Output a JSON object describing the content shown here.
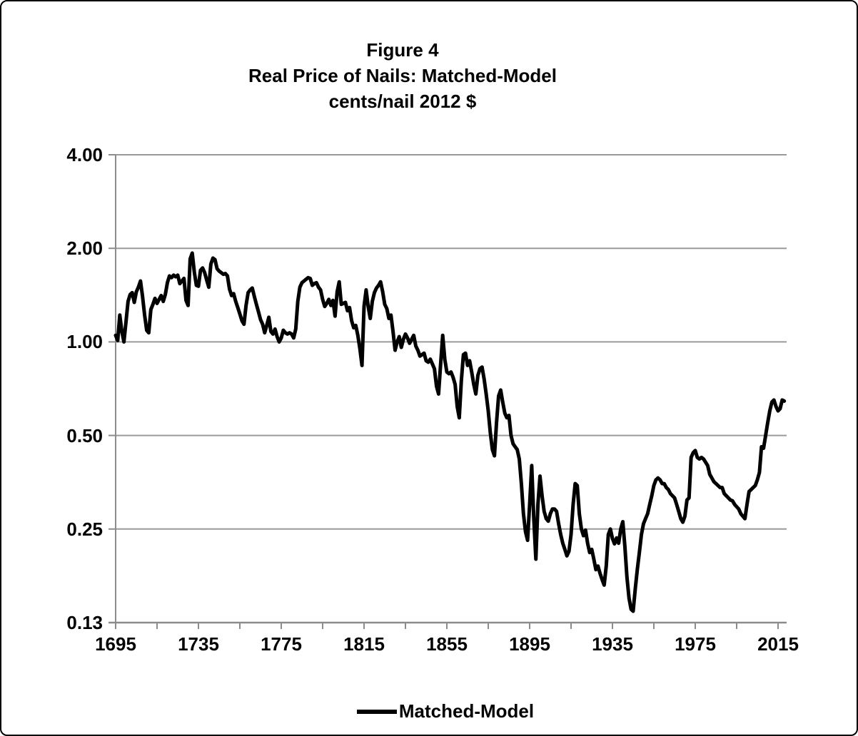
{
  "figure": {
    "title_line1": "Figure 4",
    "title_line2": "Real Price of Nails: Matched-Model",
    "title_line3": "cents/nail  2012 $"
  },
  "legend": {
    "label": "Matched-Model"
  },
  "colors": {
    "series": "#000000",
    "grid": "#9a9a9a",
    "axis": "#8c8c8c",
    "text": "#000000",
    "background": "#ffffff",
    "border": "#000000"
  },
  "chart_data": {
    "type": "line",
    "title": "Figure 4",
    "subtitle": "Real Price of Nails: Matched-Model",
    "units": "cents/nail  2012 $",
    "grid": "horizontal-only",
    "legend_position": "bottom-center",
    "x_axis": {
      "label": "",
      "range_years": [
        1695,
        2019
      ],
      "tick_interval_years": 20,
      "label_interval_years": 40,
      "tick_labels": [
        "1695",
        "1735",
        "1775",
        "1815",
        "1855",
        "1895",
        "1935",
        "1975",
        "2015"
      ]
    },
    "y_axis": {
      "label": "",
      "scale": "log2",
      "tick_labels": [
        "4.00",
        "2.00",
        "1.00",
        "0.50",
        "0.25",
        "0.13"
      ],
      "tick_values": [
        4,
        2,
        1,
        0.5,
        0.25,
        0.125
      ],
      "range": [
        0.125,
        4
      ]
    },
    "series": [
      {
        "name": "Matched-Model",
        "frequency": "annual",
        "start_year": 1695,
        "end_year": 2018,
        "values": [
          1.05,
          1.01,
          1.22,
          1.08,
          1.0,
          1.16,
          1.35,
          1.42,
          1.44,
          1.34,
          1.45,
          1.5,
          1.57,
          1.4,
          1.22,
          1.09,
          1.07,
          1.27,
          1.32,
          1.38,
          1.33,
          1.37,
          1.41,
          1.35,
          1.42,
          1.55,
          1.63,
          1.61,
          1.64,
          1.62,
          1.64,
          1.54,
          1.57,
          1.6,
          1.36,
          1.31,
          1.85,
          1.93,
          1.68,
          1.52,
          1.51,
          1.7,
          1.73,
          1.67,
          1.58,
          1.5,
          1.78,
          1.86,
          1.84,
          1.72,
          1.69,
          1.67,
          1.65,
          1.66,
          1.63,
          1.48,
          1.41,
          1.43,
          1.35,
          1.29,
          1.23,
          1.17,
          1.14,
          1.31,
          1.44,
          1.47,
          1.49,
          1.4,
          1.32,
          1.25,
          1.18,
          1.14,
          1.07,
          1.13,
          1.2,
          1.08,
          1.06,
          1.1,
          1.04,
          1.0,
          1.03,
          1.09,
          1.07,
          1.06,
          1.07,
          1.06,
          1.03,
          1.1,
          1.35,
          1.5,
          1.55,
          1.57,
          1.59,
          1.61,
          1.6,
          1.52,
          1.54,
          1.55,
          1.5,
          1.47,
          1.37,
          1.3,
          1.33,
          1.37,
          1.31,
          1.36,
          1.21,
          1.45,
          1.56,
          1.32,
          1.33,
          1.34,
          1.26,
          1.29,
          1.17,
          1.11,
          1.13,
          1.05,
          0.95,
          0.84,
          1.3,
          1.47,
          1.3,
          1.19,
          1.35,
          1.44,
          1.49,
          1.52,
          1.56,
          1.45,
          1.32,
          1.28,
          1.19,
          1.22,
          1.08,
          0.94,
          1.0,
          1.04,
          0.96,
          1.02,
          1.06,
          1.03,
          0.99,
          1.02,
          1.05,
          0.97,
          0.94,
          0.9,
          0.91,
          0.92,
          0.87,
          0.86,
          0.88,
          0.85,
          0.82,
          0.72,
          0.68,
          0.85,
          1.05,
          0.88,
          0.8,
          0.79,
          0.8,
          0.77,
          0.73,
          0.62,
          0.57,
          0.75,
          0.91,
          0.92,
          0.84,
          0.87,
          0.8,
          0.73,
          0.68,
          0.78,
          0.82,
          0.83,
          0.76,
          0.68,
          0.6,
          0.51,
          0.45,
          0.43,
          0.55,
          0.67,
          0.7,
          0.64,
          0.59,
          0.57,
          0.58,
          0.5,
          0.47,
          0.46,
          0.45,
          0.42,
          0.35,
          0.28,
          0.245,
          0.23,
          0.3,
          0.4,
          0.27,
          0.2,
          0.3,
          0.37,
          0.32,
          0.285,
          0.27,
          0.265,
          0.28,
          0.29,
          0.29,
          0.285,
          0.26,
          0.24,
          0.225,
          0.215,
          0.205,
          0.212,
          0.24,
          0.3,
          0.35,
          0.345,
          0.28,
          0.25,
          0.238,
          0.248,
          0.225,
          0.21,
          0.215,
          0.2,
          0.185,
          0.19,
          0.18,
          0.172,
          0.165,
          0.19,
          0.24,
          0.25,
          0.233,
          0.224,
          0.234,
          0.225,
          0.25,
          0.264,
          0.22,
          0.175,
          0.15,
          0.138,
          0.136,
          0.16,
          0.185,
          0.21,
          0.24,
          0.26,
          0.27,
          0.28,
          0.3,
          0.32,
          0.345,
          0.36,
          0.365,
          0.36,
          0.35,
          0.35,
          0.34,
          0.335,
          0.325,
          0.32,
          0.315,
          0.3,
          0.285,
          0.27,
          0.263,
          0.275,
          0.31,
          0.315,
          0.425,
          0.44,
          0.447,
          0.425,
          0.42,
          0.425,
          0.42,
          0.41,
          0.4,
          0.375,
          0.365,
          0.355,
          0.35,
          0.345,
          0.34,
          0.34,
          0.325,
          0.32,
          0.315,
          0.31,
          0.308,
          0.3,
          0.295,
          0.29,
          0.28,
          0.275,
          0.27,
          0.3,
          0.33,
          0.335,
          0.34,
          0.345,
          0.36,
          0.38,
          0.46,
          0.455,
          0.5,
          0.55,
          0.6,
          0.64,
          0.65,
          0.62,
          0.6,
          0.61,
          0.65,
          0.645
        ]
      }
    ]
  }
}
